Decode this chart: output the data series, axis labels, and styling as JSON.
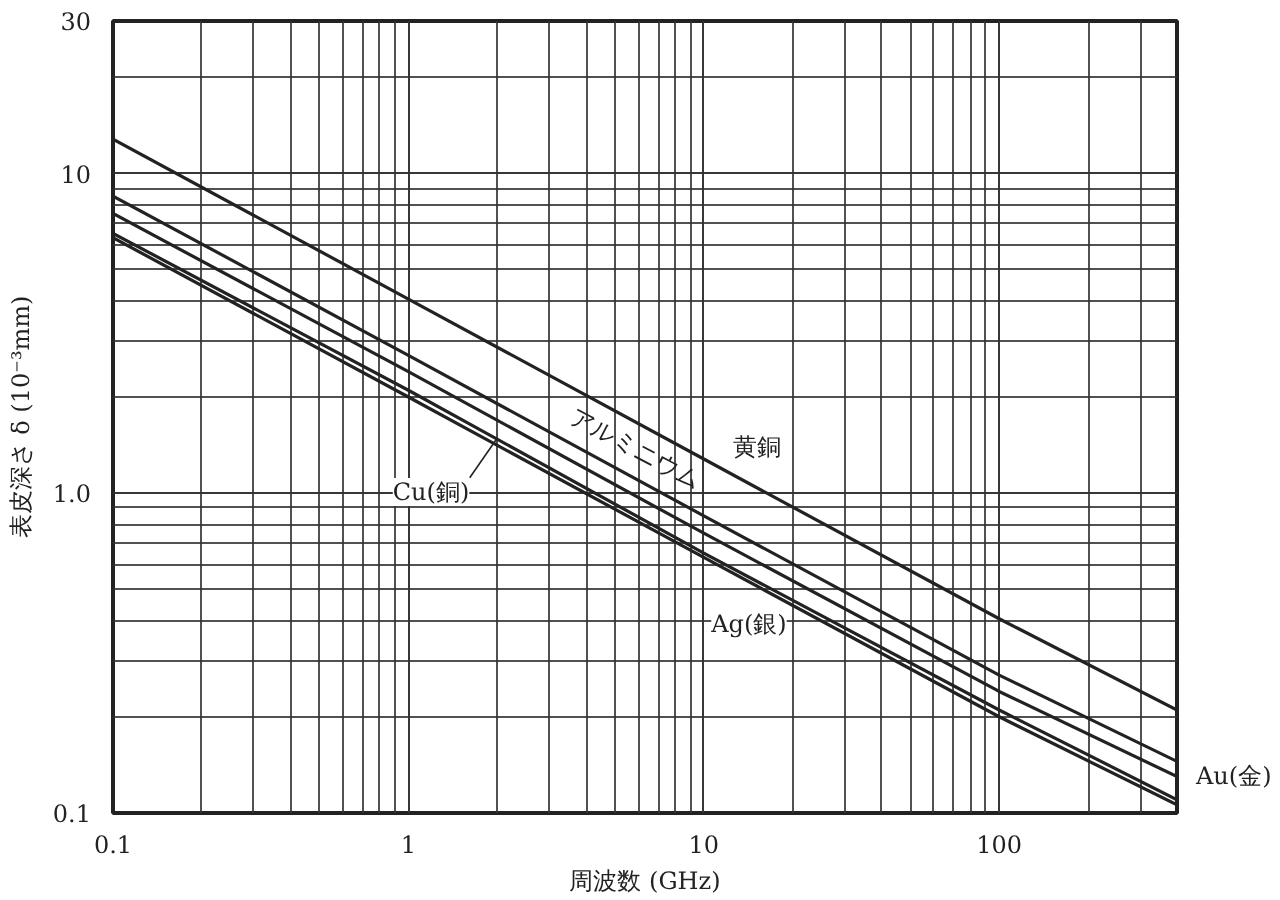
{
  "chart_data": {
    "type": "line",
    "xlabel": "周波数 (GHz)",
    "ylabel": "表皮深さ δ (10⁻³mm)",
    "log": "xy",
    "grid": true,
    "xlim": [
      0.1,
      400
    ],
    "ylim": [
      0.1,
      30
    ],
    "xticks": [
      0.1,
      1,
      10,
      100
    ],
    "yticks": [
      0.1,
      {
        "value": 1,
        "label": "1.0"
      },
      10,
      30
    ],
    "series": [
      {
        "name": "黄銅",
        "color": "#222222",
        "x": [
          0.1,
          1,
          10,
          100,
          400
        ],
        "values": [
          12.8,
          4.05,
          1.28,
          0.405,
          0.21
        ]
      },
      {
        "name": "アルミニウム",
        "color": "#222222",
        "x": [
          0.1,
          1,
          10,
          100,
          400
        ],
        "values": [
          8.5,
          2.7,
          0.85,
          0.27,
          0.145
        ]
      },
      {
        "name": "Au(金)",
        "color": "#222222",
        "x": [
          0.1,
          1,
          10,
          100,
          400
        ],
        "values": [
          7.5,
          2.4,
          0.75,
          0.24,
          0.13
        ]
      },
      {
        "name": "Cu(銅)",
        "color": "#222222",
        "x": [
          0.1,
          1,
          10,
          100,
          400
        ],
        "values": [
          6.5,
          2.1,
          0.65,
          0.21,
          0.11
        ]
      },
      {
        "name": "Ag(銀)",
        "color": "#222222",
        "x": [
          0.1,
          1,
          10,
          100,
          400
        ],
        "values": [
          6.3,
          2.0,
          0.63,
          0.2,
          0.106
        ]
      }
    ]
  }
}
